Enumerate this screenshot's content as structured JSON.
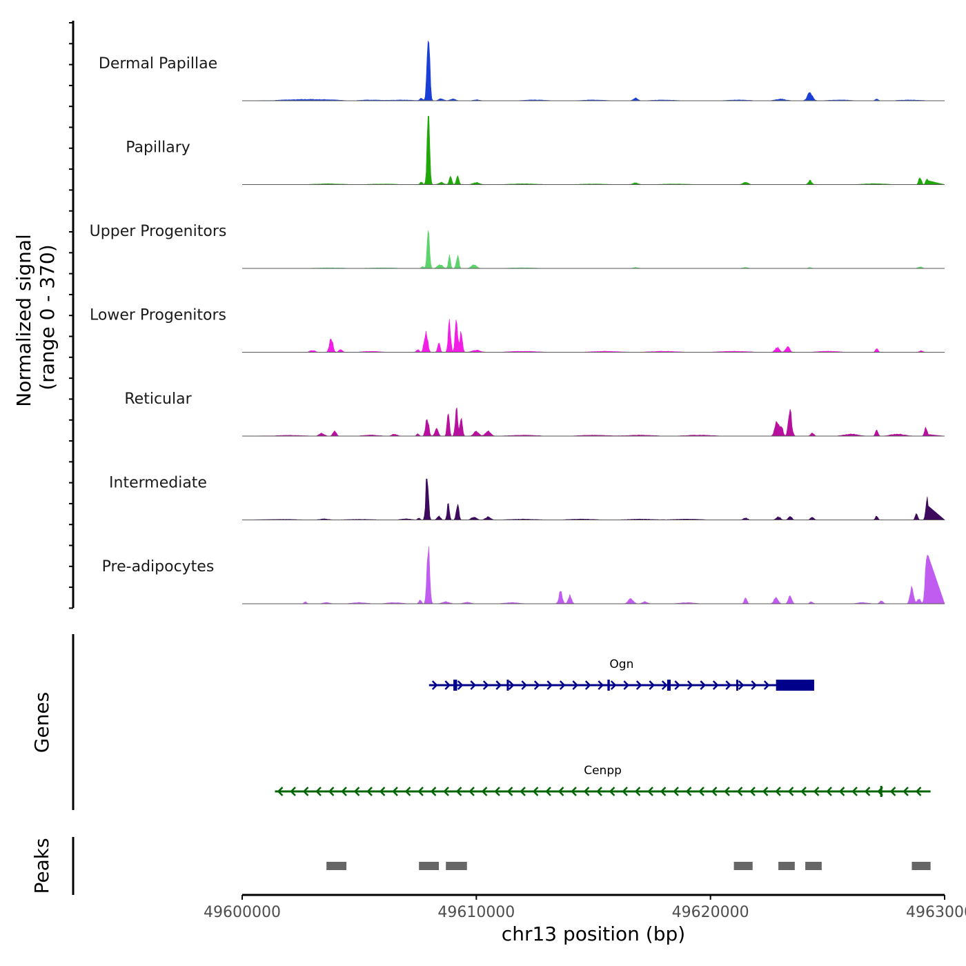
{
  "chart_data": {
    "type": "area",
    "title": "",
    "xlabel": "chr13 position (bp)",
    "ylabel": "Normalized signal\n(range 0 - 370)",
    "ylabel_lines": [
      "Normalized signal",
      "(range 0 - 370)"
    ],
    "ylim": [
      0,
      370
    ],
    "xlim": [
      49600000,
      49630000
    ],
    "x_ticks": [
      49600000,
      49610000,
      49620000,
      49630000
    ],
    "x_tick_labels": [
      "49600000",
      "49610000",
      "49620000",
      "49630000"
    ],
    "tracks": [
      {
        "name": "Dermal Papillae",
        "color": "#1a3fd6",
        "peaks": [
          [
            49601900,
            4,
            1200
          ],
          [
            49602800,
            6,
            1200
          ],
          [
            49603700,
            5,
            1200
          ],
          [
            49605500,
            4,
            1200
          ],
          [
            49606800,
            4,
            1200
          ],
          [
            49607650,
            12,
            180
          ],
          [
            49607950,
            360,
            160
          ],
          [
            49608500,
            10,
            300
          ],
          [
            49609000,
            10,
            300
          ],
          [
            49610000,
            5,
            400
          ],
          [
            49612500,
            4,
            1200
          ],
          [
            49615000,
            4,
            1200
          ],
          [
            49616800,
            15,
            250
          ],
          [
            49618000,
            4,
            1200
          ],
          [
            49621200,
            4,
            1200
          ],
          [
            49623000,
            8,
            600
          ],
          [
            49624250,
            40,
            300
          ],
          [
            49625500,
            4,
            1200
          ],
          [
            49627100,
            8,
            200
          ],
          [
            49628500,
            4,
            1200
          ]
        ]
      },
      {
        "name": "Papillary",
        "color": "#20a80a",
        "peaks": [
          [
            49603700,
            4,
            1500
          ],
          [
            49606000,
            3,
            1500
          ],
          [
            49607650,
            15,
            150
          ],
          [
            49607950,
            355,
            150
          ],
          [
            49608500,
            12,
            300
          ],
          [
            49608900,
            40,
            150
          ],
          [
            49609200,
            45,
            150
          ],
          [
            49610000,
            10,
            400
          ],
          [
            49612000,
            4,
            1500
          ],
          [
            49615000,
            3,
            1500
          ],
          [
            49616800,
            10,
            300
          ],
          [
            49618500,
            3,
            1500
          ],
          [
            49621500,
            12,
            300
          ],
          [
            49624250,
            20,
            200
          ],
          [
            49627000,
            5,
            1200
          ],
          [
            49628950,
            40,
            150
          ],
          [
            49629250,
            30,
            150
          ]
        ]
      },
      {
        "name": "Upper Progenitors",
        "color": "#5cd36b",
        "peaks": [
          [
            49603700,
            3,
            1500
          ],
          [
            49606000,
            3,
            1500
          ],
          [
            49607700,
            10,
            150
          ],
          [
            49607950,
            180,
            150
          ],
          [
            49608450,
            20,
            300
          ],
          [
            49608850,
            60,
            130
          ],
          [
            49609200,
            65,
            150
          ],
          [
            49609900,
            20,
            300
          ],
          [
            49612000,
            3,
            1500
          ],
          [
            49616800,
            5,
            300
          ],
          [
            49621500,
            5,
            300
          ],
          [
            49624250,
            5,
            200
          ],
          [
            49628950,
            8,
            250
          ]
        ]
      },
      {
        "name": "Lower Progenitors",
        "color": "#f21ee6",
        "peaks": [
          [
            49603000,
            10,
            300
          ],
          [
            49603800,
            75,
            200
          ],
          [
            49604200,
            15,
            200
          ],
          [
            49605500,
            5,
            900
          ],
          [
            49607500,
            15,
            150
          ],
          [
            49607850,
            110,
            200
          ],
          [
            49608400,
            45,
            150
          ],
          [
            49608850,
            150,
            150
          ],
          [
            49609150,
            170,
            150
          ],
          [
            49609350,
            100,
            150
          ],
          [
            49610000,
            10,
            500
          ],
          [
            49612000,
            5,
            1500
          ],
          [
            49615500,
            5,
            1500
          ],
          [
            49618000,
            5,
            1500
          ],
          [
            49621000,
            5,
            1500
          ],
          [
            49622850,
            25,
            250
          ],
          [
            49623300,
            25,
            250
          ],
          [
            49625000,
            5,
            1200
          ],
          [
            49627100,
            20,
            150
          ],
          [
            49629000,
            8,
            200
          ]
        ]
      },
      {
        "name": "Reticular",
        "color": "#b8109e",
        "peaks": [
          [
            49602000,
            4,
            1500
          ],
          [
            49603400,
            15,
            300
          ],
          [
            49603950,
            25,
            200
          ],
          [
            49605500,
            5,
            900
          ],
          [
            49606500,
            10,
            300
          ],
          [
            49607500,
            12,
            150
          ],
          [
            49607900,
            100,
            180
          ],
          [
            49608300,
            35,
            200
          ],
          [
            49608800,
            130,
            130
          ],
          [
            49609150,
            140,
            150
          ],
          [
            49609350,
            90,
            150
          ],
          [
            49610000,
            25,
            300
          ],
          [
            49610500,
            25,
            300
          ],
          [
            49612000,
            5,
            1500
          ],
          [
            49615000,
            5,
            1500
          ],
          [
            49617000,
            5,
            1500
          ],
          [
            49619500,
            5,
            1500
          ],
          [
            49622850,
            80,
            250
          ],
          [
            49623050,
            40,
            150
          ],
          [
            49623400,
            125,
            200
          ],
          [
            49624350,
            15,
            200
          ],
          [
            49626000,
            10,
            800
          ],
          [
            49627100,
            30,
            150
          ],
          [
            49628000,
            10,
            800
          ],
          [
            49629200,
            45,
            150
          ]
        ]
      },
      {
        "name": "Intermediate",
        "color": "#3d0a5e",
        "peaks": [
          [
            49601800,
            3,
            1500
          ],
          [
            49603500,
            5,
            500
          ],
          [
            49605000,
            3,
            1500
          ],
          [
            49607000,
            5,
            600
          ],
          [
            49607550,
            10,
            150
          ],
          [
            49607900,
            250,
            150
          ],
          [
            49608400,
            20,
            200
          ],
          [
            49608800,
            90,
            130
          ],
          [
            49609200,
            90,
            150
          ],
          [
            49609900,
            15,
            300
          ],
          [
            49610500,
            15,
            300
          ],
          [
            49612000,
            4,
            1500
          ],
          [
            49614500,
            4,
            1500
          ],
          [
            49617000,
            4,
            1500
          ],
          [
            49619000,
            4,
            1500
          ],
          [
            49621500,
            10,
            250
          ],
          [
            49622900,
            15,
            250
          ],
          [
            49623400,
            20,
            200
          ],
          [
            49624350,
            15,
            200
          ],
          [
            49627100,
            20,
            150
          ],
          [
            49628800,
            30,
            150
          ],
          [
            49629250,
            105,
            150
          ]
        ]
      },
      {
        "name": "Pre-adipocytes",
        "color": "#c05df0",
        "peaks": [
          [
            49602700,
            10,
            150
          ],
          [
            49603600,
            6,
            400
          ],
          [
            49605000,
            6,
            800
          ],
          [
            49606500,
            6,
            800
          ],
          [
            49607600,
            20,
            150
          ],
          [
            49607950,
            320,
            160
          ],
          [
            49608700,
            10,
            400
          ],
          [
            49609600,
            8,
            400
          ],
          [
            49611500,
            6,
            800
          ],
          [
            49613600,
            65,
            200
          ],
          [
            49614000,
            40,
            200
          ],
          [
            49616600,
            25,
            300
          ],
          [
            49617200,
            10,
            300
          ],
          [
            49619000,
            6,
            800
          ],
          [
            49621500,
            35,
            150
          ],
          [
            49622800,
            30,
            250
          ],
          [
            49623400,
            40,
            200
          ],
          [
            49624300,
            10,
            200
          ],
          [
            49626500,
            6,
            600
          ],
          [
            49627300,
            15,
            200
          ],
          [
            49628600,
            80,
            200
          ],
          [
            49628900,
            25,
            200
          ],
          [
            49629250,
            310,
            180
          ]
        ]
      }
    ],
    "genes": {
      "title": "Genes",
      "items": [
        {
          "name": "Ogn",
          "color": "#00008b",
          "strand": "+",
          "start": 49607980,
          "end": 49624430,
          "exons": [
            [
              49609020,
              49609180
            ],
            [
              49611300,
              49611380
            ],
            [
              49615600,
              49615700
            ],
            [
              49618150,
              49618300
            ],
            [
              49621100,
              49621160
            ],
            [
              49622800,
              49624430
            ]
          ]
        },
        {
          "name": "Cenpp",
          "color": "#006400",
          "strand": "-",
          "start": 49601400,
          "end": 49629400,
          "exons": [
            [
              49627250,
              49627330
            ]
          ]
        }
      ]
    },
    "peaks_track": {
      "title": "Peaks",
      "color": "#666666",
      "regions": [
        [
          49603600,
          49604450
        ],
        [
          49607550,
          49608400
        ],
        [
          49608700,
          49609600
        ],
        [
          49621000,
          49621800
        ],
        [
          49622900,
          49623600
        ],
        [
          49624050,
          49624750
        ],
        [
          49628600,
          49629400
        ]
      ]
    }
  }
}
